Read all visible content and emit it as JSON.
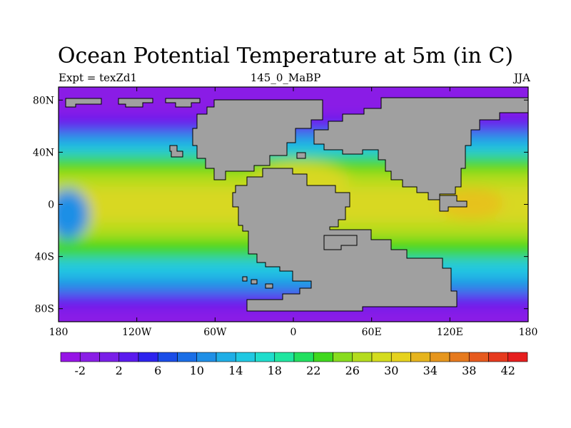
{
  "title": "Ocean Potential Temperature at 5m (in C)",
  "subtitle_left": "Expt = texZd1",
  "subtitle_center": "145_0_MaBP",
  "subtitle_right": "JJA",
  "axes": {
    "lon_range": [
      -180,
      180
    ],
    "lat_range": [
      -90,
      90
    ],
    "lon_ticks": [
      {
        "value": -180,
        "label": "180"
      },
      {
        "value": -120,
        "label": "120W"
      },
      {
        "value": -60,
        "label": "60W"
      },
      {
        "value": 0,
        "label": "0"
      },
      {
        "value": 60,
        "label": "60E"
      },
      {
        "value": 120,
        "label": "120E"
      },
      {
        "value": 180,
        "label": "180"
      }
    ],
    "lat_ticks": [
      {
        "value": 80,
        "label": "80N"
      },
      {
        "value": 40,
        "label": "40N"
      },
      {
        "value": 0,
        "label": "0"
      },
      {
        "value": -40,
        "label": "40S"
      },
      {
        "value": -80,
        "label": "80S"
      }
    ]
  },
  "colorbar": {
    "colors": [
      "#9615e6",
      "#8a1ee6",
      "#7a1fe8",
      "#5b1aee",
      "#2d23ee",
      "#1a4de8",
      "#1a6ee6",
      "#1f8fe6",
      "#1faee6",
      "#20c8e2",
      "#1fddcc",
      "#20e6a0",
      "#22e060",
      "#40d81e",
      "#88dc1e",
      "#b4dc1e",
      "#d4dc1e",
      "#e6d21e",
      "#e6b41e",
      "#e6961e",
      "#e67a1e",
      "#e65a1e",
      "#e63a1e",
      "#e61e1e"
    ],
    "labels": [
      "-2",
      "2",
      "6",
      "10",
      "14",
      "18",
      "22",
      "26",
      "30",
      "34",
      "38",
      "42"
    ]
  },
  "colors": {
    "land": "#a0a0a0",
    "equatorial": "#d8d820",
    "tropical": "#b4dc1e",
    "subtropical": "#40d81e",
    "temperate": "#20c8e2",
    "cool": "#1f8fe6",
    "cold": "#5b1aee",
    "polar": "#8a1ee6"
  }
}
